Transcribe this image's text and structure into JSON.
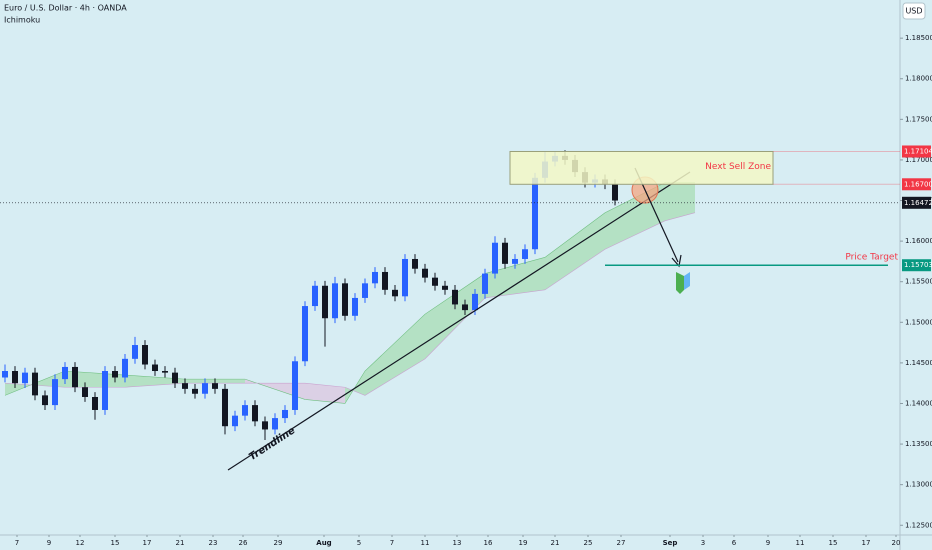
{
  "header": {
    "title": "Euro / U.S. Dollar · 4h · OANDA",
    "indicator": "Ichimoku",
    "currency": "USD"
  },
  "chart_data": {
    "type": "candlestick",
    "x": [
      0,
      1,
      2,
      3,
      4,
      5,
      6,
      7,
      8,
      9,
      10,
      11,
      12,
      13,
      14,
      15,
      16,
      17,
      18,
      19,
      20,
      21,
      22,
      23,
      24,
      25,
      26,
      27,
      28,
      29,
      30,
      31,
      32,
      33,
      34,
      35,
      36,
      37,
      38,
      39,
      40,
      41,
      42,
      43,
      44,
      45,
      46,
      47,
      48,
      49,
      50,
      51,
      52,
      53,
      54,
      55,
      56,
      57,
      58,
      59,
      60,
      61
    ],
    "open": [
      1.1432,
      1.144,
      1.1425,
      1.1438,
      1.141,
      1.1398,
      1.143,
      1.1445,
      1.142,
      1.1408,
      1.1392,
      1.144,
      1.1432,
      1.1455,
      1.1472,
      1.1448,
      1.144,
      1.1438,
      1.1425,
      1.1418,
      1.1412,
      1.1425,
      1.1418,
      1.1372,
      1.1385,
      1.1398,
      1.1378,
      1.1368,
      1.1382,
      1.1392,
      1.1452,
      1.152,
      1.1545,
      1.1505,
      1.1548,
      1.1508,
      1.153,
      1.1548,
      1.1562,
      1.154,
      1.1532,
      1.1578,
      1.1566,
      1.1555,
      1.1545,
      1.154,
      1.1522,
      1.1515,
      1.1535,
      1.156,
      1.1598,
      1.1572,
      1.1578,
      1.159,
      1.1678,
      1.1698,
      1.1705,
      1.17,
      1.1685,
      1.1672,
      1.1676,
      1.167
    ],
    "high": [
      1.1448,
      1.1446,
      1.1444,
      1.1444,
      1.1416,
      1.1436,
      1.1451,
      1.1451,
      1.1426,
      1.1414,
      1.1446,
      1.1446,
      1.1461,
      1.1482,
      1.1478,
      1.1454,
      1.1446,
      1.1444,
      1.1431,
      1.1424,
      1.1431,
      1.1431,
      1.1424,
      1.1391,
      1.1404,
      1.1404,
      1.1384,
      1.1388,
      1.1398,
      1.1458,
      1.1526,
      1.1551,
      1.1551,
      1.1556,
      1.1554,
      1.1536,
      1.1554,
      1.1568,
      1.1568,
      1.1546,
      1.1584,
      1.1584,
      1.1572,
      1.1561,
      1.1551,
      1.1546,
      1.1528,
      1.1541,
      1.1566,
      1.1606,
      1.1604,
      1.1584,
      1.1596,
      1.1684,
      1.171,
      1.1711,
      1.1712,
      1.1706,
      1.1691,
      1.1682,
      1.1682,
      1.1676
    ],
    "low": [
      1.1426,
      1.1419,
      1.1419,
      1.1404,
      1.1392,
      1.1392,
      1.1424,
      1.1414,
      1.1402,
      1.138,
      1.1386,
      1.1426,
      1.1426,
      1.1449,
      1.1442,
      1.1434,
      1.1432,
      1.1419,
      1.1412,
      1.1406,
      1.1406,
      1.1412,
      1.1362,
      1.1366,
      1.1379,
      1.1372,
      1.1355,
      1.1362,
      1.1376,
      1.1386,
      1.1446,
      1.1514,
      1.147,
      1.1499,
      1.1502,
      1.1502,
      1.1524,
      1.1542,
      1.1534,
      1.1526,
      1.1526,
      1.156,
      1.1549,
      1.1539,
      1.1534,
      1.1516,
      1.1509,
      1.1509,
      1.1529,
      1.1554,
      1.1566,
      1.1566,
      1.1572,
      1.1584,
      1.1672,
      1.1692,
      1.1694,
      1.1679,
      1.1666,
      1.1666,
      1.1664,
      1.1644
    ],
    "close": [
      1.144,
      1.1425,
      1.1438,
      1.141,
      1.1398,
      1.143,
      1.1445,
      1.142,
      1.1408,
      1.1392,
      1.144,
      1.1432,
      1.1455,
      1.1472,
      1.1448,
      1.144,
      1.1438,
      1.1425,
      1.1418,
      1.1412,
      1.1425,
      1.1418,
      1.1372,
      1.1385,
      1.1398,
      1.1378,
      1.1368,
      1.1382,
      1.1392,
      1.1452,
      1.152,
      1.1545,
      1.1505,
      1.1548,
      1.1508,
      1.153,
      1.1548,
      1.1562,
      1.154,
      1.1532,
      1.1578,
      1.1566,
      1.1555,
      1.1545,
      1.154,
      1.1522,
      1.1515,
      1.1535,
      1.156,
      1.1598,
      1.1572,
      1.1578,
      1.159,
      1.1678,
      1.1698,
      1.1705,
      1.17,
      1.1685,
      1.1672,
      1.1676,
      1.167,
      1.165
    ],
    "up_color": "#2962ff",
    "down_color": "#131722",
    "xlim": [
      -0.5,
      89.5
    ],
    "ylim": [
      1.1238,
      1.1897
    ],
    "xticks": [
      {
        "value": 1.2,
        "label": "7"
      },
      {
        "value": 4.4,
        "label": "9"
      },
      {
        "value": 7.5,
        "label": "12"
      },
      {
        "value": 11,
        "label": "15"
      },
      {
        "value": 14.2,
        "label": "17"
      },
      {
        "value": 17.5,
        "label": "21"
      },
      {
        "value": 20.8,
        "label": "23"
      },
      {
        "value": 23.8,
        "label": "26"
      },
      {
        "value": 27.3,
        "label": "29"
      },
      {
        "value": 31.9,
        "label": "Aug"
      },
      {
        "value": 35.4,
        "label": "5"
      },
      {
        "value": 38.7,
        "label": "7"
      },
      {
        "value": 42,
        "label": "11"
      },
      {
        "value": 45.2,
        "label": "13"
      },
      {
        "value": 48.3,
        "label": "16"
      },
      {
        "value": 51.8,
        "label": "19"
      },
      {
        "value": 55,
        "label": "21"
      },
      {
        "value": 58.3,
        "label": "25"
      },
      {
        "value": 61.6,
        "label": "27"
      },
      {
        "value": 66.5,
        "label": "Sep"
      },
      {
        "value": 69.8,
        "label": "3"
      },
      {
        "value": 72.9,
        "label": "6"
      },
      {
        "value": 76.3,
        "label": "9"
      },
      {
        "value": 79.5,
        "label": "11"
      },
      {
        "value": 82.8,
        "label": "15"
      },
      {
        "value": 86.1,
        "label": "17"
      },
      {
        "value": 89.1,
        "label": "20"
      }
    ],
    "yticks": [
      {
        "value": 1.185,
        "label": "1.18500"
      },
      {
        "value": 1.18,
        "label": "1.18000"
      },
      {
        "value": 1.175,
        "label": "1.17500"
      },
      {
        "value": 1.17,
        "label": "1.17000"
      },
      {
        "value": 1.165,
        "label": "1.16500"
      },
      {
        "value": 1.16,
        "label": "1.16000"
      },
      {
        "value": 1.155,
        "label": "1.15500"
      },
      {
        "value": 1.15,
        "label": "1.15000"
      },
      {
        "value": 1.145,
        "label": "1.14500"
      },
      {
        "value": 1.14,
        "label": "1.14000"
      },
      {
        "value": 1.135,
        "label": "1.13500"
      },
      {
        "value": 1.13,
        "label": "1.13000"
      },
      {
        "value": 1.125,
        "label": "1.12500"
      }
    ],
    "cloud": {
      "x": [
        0,
        6,
        12,
        18,
        24,
        30,
        34,
        36,
        42,
        48,
        54,
        60,
        66,
        69
      ],
      "span_a": [
        1.141,
        1.144,
        1.1435,
        1.143,
        1.143,
        1.1405,
        1.14,
        1.144,
        1.151,
        1.156,
        1.158,
        1.1635,
        1.1672,
        1.1672
      ],
      "span_b": [
        1.1425,
        1.142,
        1.142,
        1.1425,
        1.1425,
        1.1425,
        1.142,
        1.141,
        1.1455,
        1.153,
        1.154,
        1.159,
        1.1625,
        1.1635
      ],
      "bull_color": "#a8dcb4",
      "bear_color": "#dcc6e0"
    },
    "zone": {
      "label": "Next Sell Zone",
      "x": [
        50.5,
        76.8
      ],
      "top": 1.17104,
      "bottom": {
        "value": 1.167,
        "label": "1.16700"
      },
      "color": "#f23645"
    },
    "target": {
      "label": "Price Target",
      "x": 60,
      "value": 1.15703,
      "color": "#089981"
    },
    "current": {
      "value": 1.16472
    },
    "trendline_label": "Trendline"
  }
}
